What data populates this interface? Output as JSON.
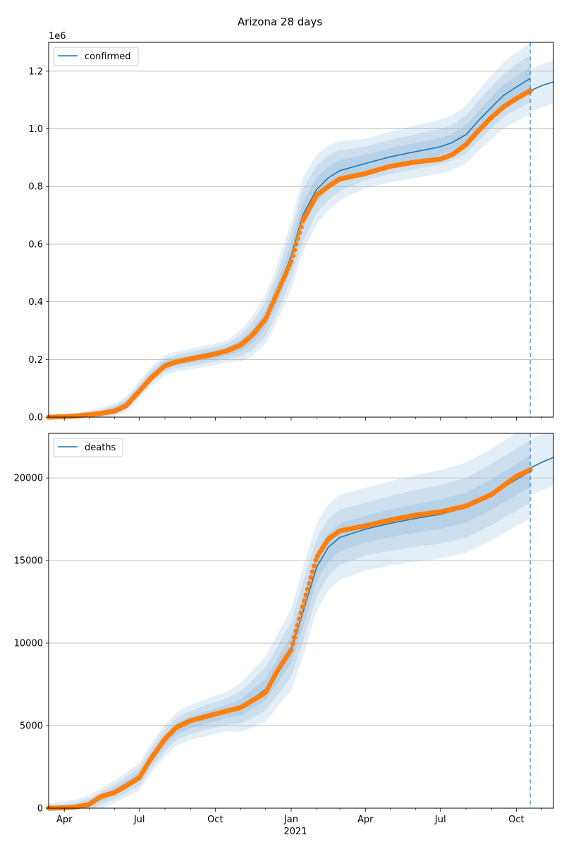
{
  "figure": {
    "title": "Arizona 28 days"
  },
  "colors": {
    "model": "#1f77b4",
    "observed": "#ff7f0e",
    "grid": "#b0b0b0"
  },
  "x_axis": {
    "tick_labels": [
      {
        "date": "2020-04-01",
        "label": "Apr"
      },
      {
        "date": "2020-07-01",
        "label": "Jul"
      },
      {
        "date": "2020-10-01",
        "label": "Oct"
      },
      {
        "date": "2021-01-01",
        "label": "Jan"
      },
      {
        "date": "2021-04-01",
        "label": "Apr"
      },
      {
        "date": "2021-07-01",
        "label": "Jul"
      },
      {
        "date": "2021-10-01",
        "label": "Oct"
      }
    ],
    "year_label": "2021",
    "range": [
      "2020-03-13",
      "2021-11-15"
    ]
  },
  "chart_data": [
    {
      "type": "line",
      "legend": "confirmed",
      "legend_position": "top-left",
      "offset_text": "1e6",
      "grid": "horizontal",
      "ylim": [
        0,
        1300000
      ],
      "yticks": [
        0,
        200000,
        400000,
        600000,
        800000,
        1000000,
        1200000
      ],
      "ytick_labels": [
        "0.0",
        "0.2",
        "0.4",
        "0.6",
        "0.8",
        "1.0",
        "1.2"
      ],
      "forecast_start": "2021-10-18",
      "model": [
        [
          "2020-03-13",
          0
        ],
        [
          "2020-04-15",
          4000
        ],
        [
          "2020-05-15",
          13000
        ],
        [
          "2020-06-01",
          25000
        ],
        [
          "2020-06-15",
          45000
        ],
        [
          "2020-07-01",
          95000
        ],
        [
          "2020-07-15",
          140000
        ],
        [
          "2020-08-01",
          180000
        ],
        [
          "2020-08-15",
          193000
        ],
        [
          "2020-09-01",
          202000
        ],
        [
          "2020-10-01",
          218000
        ],
        [
          "2020-10-15",
          228000
        ],
        [
          "2020-11-01",
          248000
        ],
        [
          "2020-11-15",
          280000
        ],
        [
          "2020-12-01",
          340000
        ],
        [
          "2020-12-15",
          430000
        ],
        [
          "2021-01-01",
          560000
        ],
        [
          "2021-01-15",
          700000
        ],
        [
          "2021-02-01",
          790000
        ],
        [
          "2021-02-15",
          830000
        ],
        [
          "2021-03-01",
          855000
        ],
        [
          "2021-04-01",
          880000
        ],
        [
          "2021-05-01",
          903000
        ],
        [
          "2021-06-01",
          921000
        ],
        [
          "2021-07-01",
          938000
        ],
        [
          "2021-07-15",
          952000
        ],
        [
          "2021-08-01",
          980000
        ],
        [
          "2021-08-15",
          1025000
        ],
        [
          "2021-09-01",
          1075000
        ],
        [
          "2021-09-15",
          1115000
        ],
        [
          "2021-10-01",
          1145000
        ],
        [
          "2021-10-18",
          1175000
        ]
      ],
      "forecast": [
        [
          "2021-10-18",
          1132000
        ],
        [
          "2021-11-01",
          1150000
        ],
        [
          "2021-11-15",
          1163000
        ]
      ],
      "bands": [
        {
          "level": 1,
          "half_width": [
            [
              "2020-03-13",
              1000
            ],
            [
              "2020-07-15",
              12000
            ],
            [
              "2020-10-15",
              14000
            ],
            [
              "2021-01-15",
              45000
            ],
            [
              "2021-04-01",
              30000
            ],
            [
              "2021-07-15",
              30000
            ],
            [
              "2021-10-18",
              40000
            ]
          ]
        },
        {
          "level": 2,
          "half_width": [
            [
              "2020-03-13",
              2000
            ],
            [
              "2020-07-15",
              22000
            ],
            [
              "2020-10-15",
              26000
            ],
            [
              "2021-01-15",
              90000
            ],
            [
              "2021-04-01",
              58000
            ],
            [
              "2021-07-15",
              62000
            ],
            [
              "2021-10-18",
              82000
            ]
          ]
        },
        {
          "level": 3,
          "half_width": [
            [
              "2020-03-13",
              3000
            ],
            [
              "2020-07-15",
              34000
            ],
            [
              "2020-10-15",
              38000
            ],
            [
              "2021-01-15",
              130000
            ],
            [
              "2021-04-01",
              85000
            ],
            [
              "2021-07-15",
              95000
            ],
            [
              "2021-10-18",
              125000
            ]
          ]
        }
      ],
      "observed": [
        [
          "2020-03-13",
          0
        ],
        [
          "2020-04-01",
          1500
        ],
        [
          "2020-04-15",
          4000
        ],
        [
          "2020-05-01",
          8000
        ],
        [
          "2020-05-15",
          13000
        ],
        [
          "2020-06-01",
          21000
        ],
        [
          "2020-06-15",
          40000
        ],
        [
          "2020-07-01",
          90000
        ],
        [
          "2020-07-15",
          135000
        ],
        [
          "2020-08-01",
          178000
        ],
        [
          "2020-08-15",
          192000
        ],
        [
          "2020-09-01",
          202000
        ],
        [
          "2020-10-01",
          219000
        ],
        [
          "2020-10-15",
          230000
        ],
        [
          "2020-11-01",
          250000
        ],
        [
          "2020-11-15",
          285000
        ],
        [
          "2020-12-01",
          340000
        ],
        [
          "2020-12-15",
          430000
        ],
        [
          "2021-01-01",
          540000
        ],
        [
          "2021-01-15",
          680000
        ],
        [
          "2021-02-01",
          770000
        ],
        [
          "2021-02-15",
          800000
        ],
        [
          "2021-03-01",
          826000
        ],
        [
          "2021-04-01",
          845000
        ],
        [
          "2021-05-01",
          870000
        ],
        [
          "2021-06-01",
          885000
        ],
        [
          "2021-07-01",
          895000
        ],
        [
          "2021-07-15",
          910000
        ],
        [
          "2021-08-01",
          945000
        ],
        [
          "2021-08-15",
          990000
        ],
        [
          "2021-09-01",
          1040000
        ],
        [
          "2021-09-15",
          1075000
        ],
        [
          "2021-10-01",
          1105000
        ],
        [
          "2021-10-18",
          1132000
        ]
      ]
    },
    {
      "type": "line",
      "legend": "deaths",
      "legend_position": "top-left",
      "grid": "horizontal",
      "ylim": [
        0,
        22700
      ],
      "yticks": [
        0,
        5000,
        10000,
        15000,
        20000
      ],
      "ytick_labels": [
        "0",
        "5000",
        "10000",
        "15000",
        "20000"
      ],
      "forecast_start": "2021-10-18",
      "model": [
        [
          "2020-03-13",
          0
        ],
        [
          "2020-04-15",
          70
        ],
        [
          "2020-05-01",
          250
        ],
        [
          "2020-06-01",
          1000
        ],
        [
          "2020-07-01",
          1900
        ],
        [
          "2020-07-15",
          3000
        ],
        [
          "2020-08-01",
          4100
        ],
        [
          "2020-08-15",
          4800
        ],
        [
          "2020-09-01",
          5200
        ],
        [
          "2020-10-01",
          5650
        ],
        [
          "2020-11-01",
          6100
        ],
        [
          "2020-12-01",
          7200
        ],
        [
          "2020-12-15",
          8300
        ],
        [
          "2021-01-01",
          9600
        ],
        [
          "2021-01-15",
          11800
        ],
        [
          "2021-02-01",
          14600
        ],
        [
          "2021-02-15",
          15800
        ],
        [
          "2021-03-01",
          16400
        ],
        [
          "2021-04-01",
          16900
        ],
        [
          "2021-05-01",
          17250
        ],
        [
          "2021-06-01",
          17550
        ],
        [
          "2021-07-01",
          17800
        ],
        [
          "2021-08-01",
          18200
        ],
        [
          "2021-09-01",
          19000
        ],
        [
          "2021-10-01",
          19900
        ],
        [
          "2021-10-18",
          20400
        ]
      ],
      "forecast": [
        [
          "2021-10-18",
          20600
        ],
        [
          "2021-11-01",
          20950
        ],
        [
          "2021-11-15",
          21250
        ]
      ],
      "bands": [
        {
          "level": 1,
          "half_width": [
            [
              "2020-03-13",
              50
            ],
            [
              "2020-07-15",
              300
            ],
            [
              "2020-10-15",
              400
            ],
            [
              "2021-01-15",
              900
            ],
            [
              "2021-04-01",
              800
            ],
            [
              "2021-07-15",
              900
            ],
            [
              "2021-10-18",
              950
            ]
          ]
        },
        {
          "level": 2,
          "half_width": [
            [
              "2020-03-13",
              150
            ],
            [
              "2020-07-15",
              600
            ],
            [
              "2020-10-15",
              800
            ],
            [
              "2021-01-15",
              1800
            ],
            [
              "2021-04-01",
              1600
            ],
            [
              "2021-07-15",
              1800
            ],
            [
              "2021-10-18",
              1900
            ]
          ]
        },
        {
          "level": 3,
          "half_width": [
            [
              "2020-03-13",
              300
            ],
            [
              "2020-07-15",
              900
            ],
            [
              "2020-10-15",
              1200
            ],
            [
              "2021-01-15",
              2700
            ],
            [
              "2021-04-01",
              2500
            ],
            [
              "2021-07-15",
              2700
            ],
            [
              "2021-10-18",
              2850
            ]
          ]
        }
      ],
      "observed": [
        [
          "2020-03-13",
          0
        ],
        [
          "2020-04-01",
          20
        ],
        [
          "2020-04-15",
          70
        ],
        [
          "2020-05-01",
          230
        ],
        [
          "2020-05-15",
          700
        ],
        [
          "2020-06-01",
          950
        ],
        [
          "2020-06-15",
          1350
        ],
        [
          "2020-07-01",
          1850
        ],
        [
          "2020-07-15",
          3000
        ],
        [
          "2020-08-01",
          4200
        ],
        [
          "2020-08-15",
          4900
        ],
        [
          "2020-09-01",
          5300
        ],
        [
          "2020-10-01",
          5700
        ],
        [
          "2020-11-01",
          6100
        ],
        [
          "2020-12-01",
          7000
        ],
        [
          "2020-12-15",
          8300
        ],
        [
          "2021-01-01",
          9600
        ],
        [
          "2021-01-15",
          12200
        ],
        [
          "2021-02-01",
          15200
        ],
        [
          "2021-02-15",
          16300
        ],
        [
          "2021-03-01",
          16800
        ],
        [
          "2021-04-01",
          17100
        ],
        [
          "2021-05-01",
          17450
        ],
        [
          "2021-06-01",
          17750
        ],
        [
          "2021-07-01",
          17950
        ],
        [
          "2021-08-01",
          18300
        ],
        [
          "2021-09-01",
          19000
        ],
        [
          "2021-10-01",
          20100
        ],
        [
          "2021-10-18",
          20500
        ]
      ]
    }
  ]
}
